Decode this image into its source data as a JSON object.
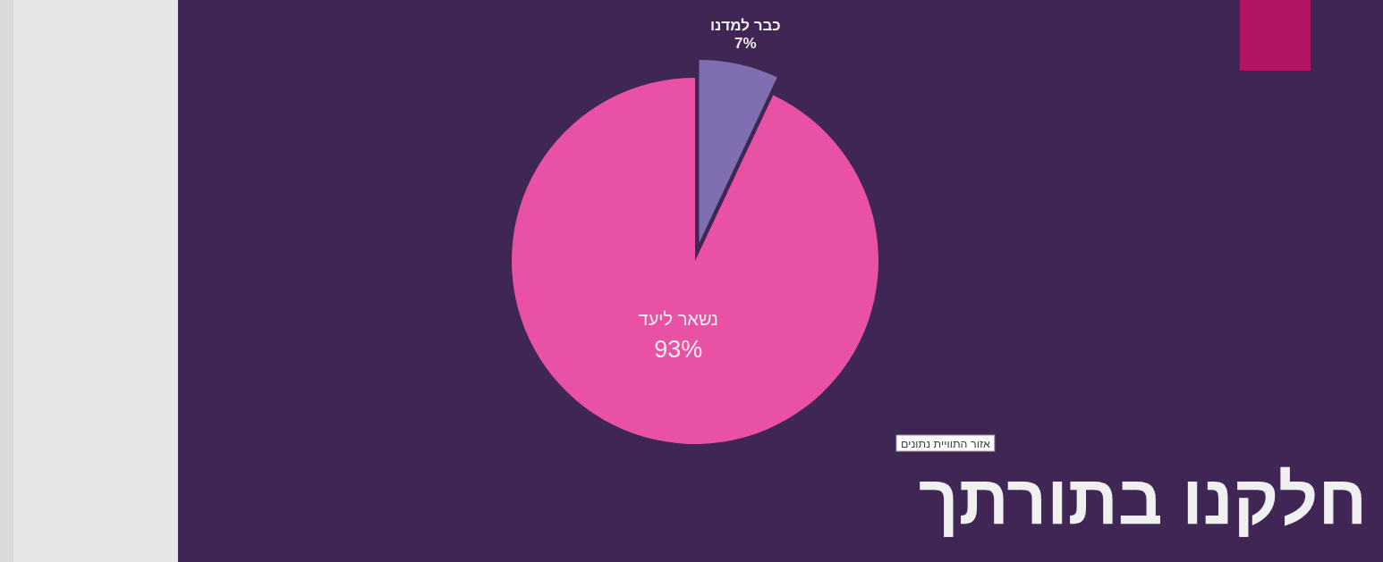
{
  "chart_data": {
    "type": "pie",
    "title": "חלקנו בתורתך",
    "categories": [
      "כבר למדנו",
      "נשאר ליעד"
    ],
    "values": [
      7,
      93
    ],
    "colors": [
      "#7f6eb0",
      "#e952a4"
    ],
    "value_labels": [
      "7%",
      "93%"
    ],
    "annotations": [
      "אזור התוויית נתונים"
    ]
  }
}
